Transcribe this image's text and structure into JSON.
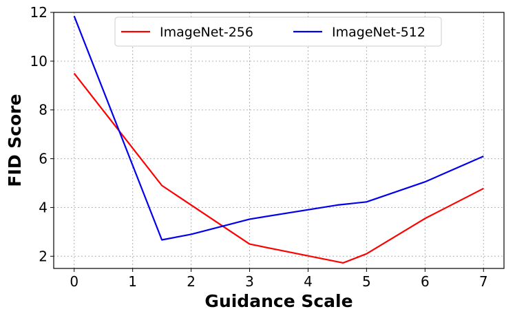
{
  "chart_data": {
    "type": "line",
    "title": "",
    "xlabel": "Guidance   Scale",
    "ylabel": "FID   Score",
    "xlim": [
      -0.35,
      7.35
    ],
    "ylim": [
      1.5,
      12
    ],
    "xticks": [
      0,
      1,
      2,
      3,
      4,
      5,
      6,
      7
    ],
    "yticks": [
      2,
      4,
      6,
      8,
      10,
      12
    ],
    "grid": true,
    "legend": "top-center",
    "series": [
      {
        "name": "ImageNet-256",
        "color": "#ff0000",
        "x": [
          0,
          1.5,
          3,
          4.6,
          5,
          6,
          7
        ],
        "y": [
          9.5,
          4.9,
          2.5,
          1.73,
          2.1,
          3.55,
          4.78
        ]
      },
      {
        "name": "ImageNet-512",
        "color": "#0000ee",
        "x": [
          0,
          1.5,
          2,
          3,
          4.5,
          5,
          6,
          7
        ],
        "y": [
          11.85,
          2.67,
          2.9,
          3.52,
          4.1,
          4.23,
          5.05,
          6.1
        ]
      }
    ]
  }
}
